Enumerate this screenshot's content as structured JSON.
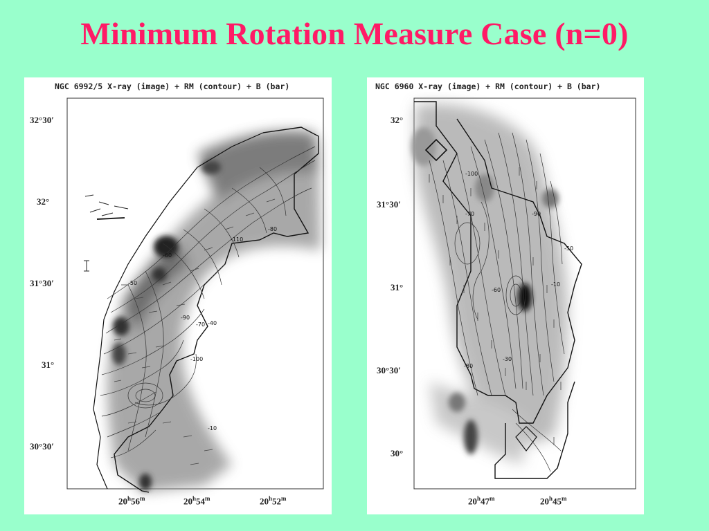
{
  "slide": {
    "title": "Minimum Rotation Measure Case (n=0)",
    "title_color": "#ff1a66",
    "background_color": "#99ffcc"
  },
  "panels": [
    {
      "title": "NGC 6992/5 X-ray (image) + RM (contour) + B (bar)",
      "dec_ticks": [
        "32°30′",
        "32°",
        "31°30′",
        "31°",
        "30°30′"
      ],
      "ra_ticks": [
        {
          "h": "20",
          "m": "56"
        },
        {
          "h": "20",
          "m": "54"
        },
        {
          "h": "20",
          "m": "52"
        }
      ],
      "contour_labels": [
        "-110",
        "-80",
        "-90",
        "-50",
        "-70",
        "-40",
        "-60",
        "-100",
        "-10"
      ]
    },
    {
      "title": "NGC 6960 X-ray (image) + RM (contour) + B (bar)",
      "dec_ticks": [
        "32°",
        "31°30′",
        "31°",
        "30°30′",
        "30°"
      ],
      "ra_ticks": [
        {
          "h": "20",
          "m": "47"
        },
        {
          "h": "20",
          "m": "45"
        }
      ],
      "contour_labels": [
        "-100",
        "-90",
        "-70",
        "-60",
        "-30",
        "-10",
        "-50",
        "-80"
      ]
    }
  ]
}
